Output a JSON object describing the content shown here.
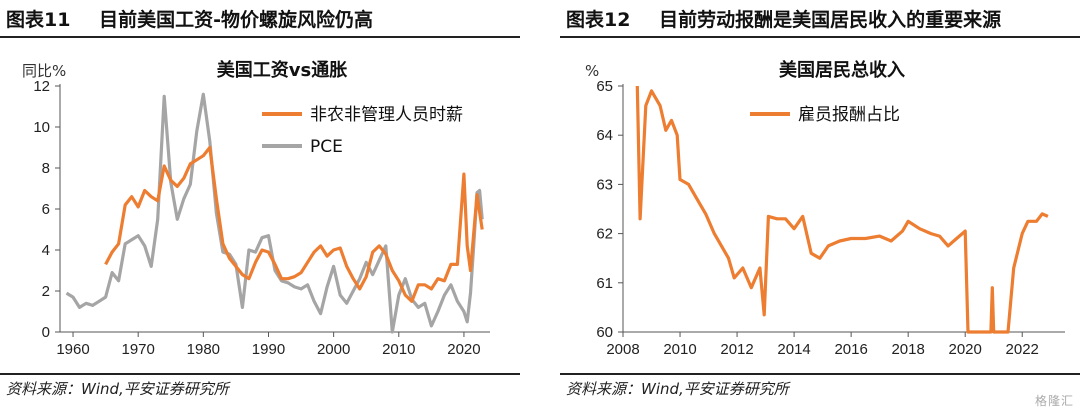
{
  "figures": [
    {
      "fig_label": "图表11",
      "title": "目前美国工资-物价螺旋风险仍高",
      "source": "资料来源：Wind,平安证券研究所"
    },
    {
      "fig_label": "图表12",
      "title": "目前劳动报酬是美国居民收入的重要来源",
      "source": "资料来源：Wind,平安证券研究所"
    }
  ],
  "watermark": "格隆汇",
  "colors": {
    "orange": "#ED7D31",
    "gray": "#A5A5A5",
    "axis": "#555555"
  },
  "chart_data": [
    {
      "type": "line",
      "title": "美国工资vs通胀",
      "ylabel": "同比%",
      "xlabel": "",
      "xlim": [
        1958,
        2024
      ],
      "ylim": [
        0,
        12
      ],
      "x_ticks": [
        1960,
        1970,
        1980,
        1990,
        2000,
        2010,
        2020
      ],
      "y_ticks": [
        0,
        2,
        4,
        6,
        8,
        10,
        12
      ],
      "legend": "top-right",
      "series": [
        {
          "name": "非农非管理人员时薪",
          "color": "#ED7D31",
          "points": [
            [
              1965,
              3.3
            ],
            [
              1966,
              3.9
            ],
            [
              1967,
              4.3
            ],
            [
              1968,
              6.2
            ],
            [
              1969,
              6.6
            ],
            [
              1970,
              6.1
            ],
            [
              1971,
              6.9
            ],
            [
              1972,
              6.6
            ],
            [
              1973,
              6.4
            ],
            [
              1974,
              8.1
            ],
            [
              1975,
              7.4
            ],
            [
              1976,
              7.1
            ],
            [
              1977,
              7.5
            ],
            [
              1978,
              8.2
            ],
            [
              1979,
              8.4
            ],
            [
              1980,
              8.6
            ],
            [
              1981,
              9.0
            ],
            [
              1982,
              6.5
            ],
            [
              1983,
              4.3
            ],
            [
              1984,
              3.6
            ],
            [
              1985,
              3.2
            ],
            [
              1986,
              2.8
            ],
            [
              1987,
              2.6
            ],
            [
              1988,
              3.4
            ],
            [
              1989,
              4.0
            ],
            [
              1990,
              3.9
            ],
            [
              1991,
              3.3
            ],
            [
              1992,
              2.6
            ],
            [
              1993,
              2.6
            ],
            [
              1994,
              2.7
            ],
            [
              1995,
              2.9
            ],
            [
              1996,
              3.4
            ],
            [
              1997,
              3.9
            ],
            [
              1998,
              4.2
            ],
            [
              1999,
              3.7
            ],
            [
              2000,
              4.0
            ],
            [
              2001,
              4.1
            ],
            [
              2002,
              3.2
            ],
            [
              2003,
              2.6
            ],
            [
              2004,
              2.1
            ],
            [
              2005,
              2.7
            ],
            [
              2006,
              3.9
            ],
            [
              2007,
              4.2
            ],
            [
              2008,
              3.8
            ],
            [
              2009,
              3.0
            ],
            [
              2010,
              2.5
            ],
            [
              2011,
              1.8
            ],
            [
              2012,
              1.5
            ],
            [
              2013,
              2.3
            ],
            [
              2014,
              2.3
            ],
            [
              2015,
              2.1
            ],
            [
              2016,
              2.6
            ],
            [
              2017,
              2.5
            ],
            [
              2018,
              3.3
            ],
            [
              2019,
              3.3
            ],
            [
              2020,
              7.7
            ],
            [
              2020.5,
              4.2
            ],
            [
              2021,
              3.0
            ],
            [
              2021.5,
              4.8
            ],
            [
              2022,
              6.7
            ],
            [
              2022.8,
              5.0
            ]
          ]
        },
        {
          "name": "PCE",
          "color": "#A5A5A5",
          "points": [
            [
              1959,
              1.9
            ],
            [
              1960,
              1.7
            ],
            [
              1961,
              1.2
            ],
            [
              1962,
              1.4
            ],
            [
              1963,
              1.3
            ],
            [
              1964,
              1.5
            ],
            [
              1965,
              1.7
            ],
            [
              1966,
              2.9
            ],
            [
              1967,
              2.5
            ],
            [
              1968,
              4.3
            ],
            [
              1969,
              4.5
            ],
            [
              1970,
              4.7
            ],
            [
              1971,
              4.2
            ],
            [
              1972,
              3.2
            ],
            [
              1973,
              5.5
            ],
            [
              1974,
              11.5
            ],
            [
              1975,
              7.3
            ],
            [
              1976,
              5.5
            ],
            [
              1977,
              6.5
            ],
            [
              1978,
              7.2
            ],
            [
              1979,
              9.8
            ],
            [
              1980,
              11.6
            ],
            [
              1981,
              9.3
            ],
            [
              1982,
              5.8
            ],
            [
              1983,
              3.9
            ],
            [
              1984,
              3.8
            ],
            [
              1985,
              3.3
            ],
            [
              1986,
              1.2
            ],
            [
              1987,
              4.0
            ],
            [
              1988,
              3.9
            ],
            [
              1989,
              4.6
            ],
            [
              1990,
              4.7
            ],
            [
              1991,
              3.0
            ],
            [
              1992,
              2.5
            ],
            [
              1993,
              2.4
            ],
            [
              1994,
              2.2
            ],
            [
              1995,
              2.1
            ],
            [
              1996,
              2.3
            ],
            [
              1997,
              1.5
            ],
            [
              1998,
              0.9
            ],
            [
              1999,
              2.2
            ],
            [
              2000,
              3.2
            ],
            [
              2001,
              1.8
            ],
            [
              2002,
              1.4
            ],
            [
              2003,
              2.0
            ],
            [
              2004,
              2.6
            ],
            [
              2005,
              3.4
            ],
            [
              2006,
              2.8
            ],
            [
              2007,
              3.5
            ],
            [
              2008,
              4.2
            ],
            [
              2009,
              0.0
            ],
            [
              2010,
              1.8
            ],
            [
              2011,
              2.6
            ],
            [
              2012,
              1.6
            ],
            [
              2013,
              1.2
            ],
            [
              2014,
              1.4
            ],
            [
              2015,
              0.3
            ],
            [
              2016,
              1.0
            ],
            [
              2017,
              1.8
            ],
            [
              2018,
              2.3
            ],
            [
              2019,
              1.5
            ],
            [
              2020,
              1.0
            ],
            [
              2020.5,
              0.5
            ],
            [
              2021,
              1.9
            ],
            [
              2021.5,
              4.2
            ],
            [
              2022,
              6.8
            ],
            [
              2022.4,
              6.9
            ],
            [
              2022.8,
              5.5
            ]
          ]
        }
      ]
    },
    {
      "type": "line",
      "title": "美国居民总收入",
      "ylabel": "%",
      "xlabel": "",
      "xlim": [
        2008,
        2023.5
      ],
      "ylim": [
        60,
        65
      ],
      "x_ticks": [
        2008,
        2010,
        2012,
        2014,
        2016,
        2018,
        2020,
        2022
      ],
      "y_ticks": [
        60,
        61,
        62,
        63,
        64,
        65
      ],
      "legend": "top-right",
      "series": [
        {
          "name": "雇员报酬占比",
          "color": "#ED7D31",
          "points": [
            [
              2008.5,
              65.0
            ],
            [
              2008.6,
              62.3
            ],
            [
              2008.8,
              64.6
            ],
            [
              2009.0,
              64.9
            ],
            [
              2009.3,
              64.6
            ],
            [
              2009.5,
              64.1
            ],
            [
              2009.7,
              64.3
            ],
            [
              2009.9,
              64.0
            ],
            [
              2010.0,
              63.1
            ],
            [
              2010.3,
              63.0
            ],
            [
              2010.6,
              62.7
            ],
            [
              2010.9,
              62.4
            ],
            [
              2011.2,
              62.0
            ],
            [
              2011.4,
              61.8
            ],
            [
              2011.7,
              61.5
            ],
            [
              2011.9,
              61.1
            ],
            [
              2012.2,
              61.3
            ],
            [
              2012.5,
              60.9
            ],
            [
              2012.8,
              61.3
            ],
            [
              2012.95,
              60.35
            ],
            [
              2013.1,
              62.35
            ],
            [
              2013.4,
              62.3
            ],
            [
              2013.7,
              62.3
            ],
            [
              2014.0,
              62.1
            ],
            [
              2014.3,
              62.35
            ],
            [
              2014.6,
              61.6
            ],
            [
              2014.9,
              61.5
            ],
            [
              2015.2,
              61.75
            ],
            [
              2015.6,
              61.85
            ],
            [
              2016.0,
              61.9
            ],
            [
              2016.5,
              61.9
            ],
            [
              2017.0,
              61.95
            ],
            [
              2017.4,
              61.85
            ],
            [
              2017.8,
              62.05
            ],
            [
              2018.0,
              62.25
            ],
            [
              2018.4,
              62.1
            ],
            [
              2018.8,
              62.0
            ],
            [
              2019.1,
              61.95
            ],
            [
              2019.4,
              61.75
            ],
            [
              2019.7,
              61.9
            ],
            [
              2020.0,
              62.05
            ],
            [
              2020.1,
              60.0
            ],
            [
              2020.9,
              60.0
            ],
            [
              2020.95,
              60.9
            ],
            [
              2021.0,
              60.0
            ],
            [
              2021.5,
              60.0
            ],
            [
              2021.7,
              61.3
            ],
            [
              2022.0,
              62.0
            ],
            [
              2022.2,
              62.25
            ],
            [
              2022.5,
              62.25
            ],
            [
              2022.7,
              62.4
            ],
            [
              2022.9,
              62.35
            ]
          ]
        }
      ]
    }
  ]
}
